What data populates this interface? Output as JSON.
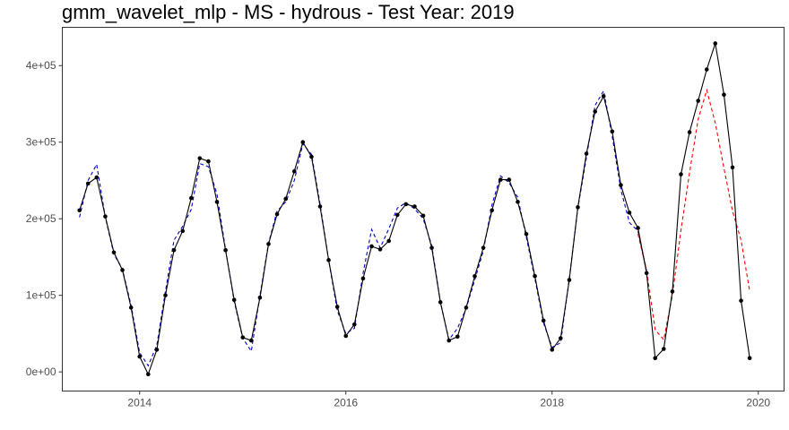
{
  "chart_data": {
    "type": "line",
    "title": "gmm_wavelet_mlp - MS - hydrous - Test Year: 2019",
    "xlabel": "",
    "ylabel": "",
    "xlim": [
      2013.25,
      2020.25
    ],
    "ylim": [
      -25000,
      450000
    ],
    "x_ticks": [
      2014,
      2016,
      2018,
      2020
    ],
    "x_tick_labels": [
      "2014",
      "2016",
      "2018",
      "2020"
    ],
    "y_ticks": [
      0,
      100000,
      200000,
      300000,
      400000
    ],
    "y_tick_labels": [
      "0e+00",
      "1e+05",
      "2e+05",
      "3e+05",
      "4e+05"
    ],
    "grid": false,
    "legend": "none",
    "x": [
      2013.417,
      2013.5,
      2013.583,
      2013.667,
      2013.75,
      2013.833,
      2013.917,
      2014.0,
      2014.083,
      2014.167,
      2014.25,
      2014.333,
      2014.417,
      2014.5,
      2014.583,
      2014.667,
      2014.75,
      2014.833,
      2014.917,
      2015.0,
      2015.083,
      2015.167,
      2015.25,
      2015.333,
      2015.417,
      2015.5,
      2015.583,
      2015.667,
      2015.75,
      2015.833,
      2015.917,
      2016.0,
      2016.083,
      2016.167,
      2016.25,
      2016.333,
      2016.417,
      2016.5,
      2016.583,
      2016.667,
      2016.75,
      2016.833,
      2016.917,
      2017.0,
      2017.083,
      2017.167,
      2017.25,
      2017.333,
      2017.417,
      2017.5,
      2017.583,
      2017.667,
      2017.75,
      2017.833,
      2017.917,
      2018.0,
      2018.083,
      2018.167,
      2018.25,
      2018.333,
      2018.417,
      2018.5,
      2018.583,
      2018.667,
      2018.75,
      2018.833,
      2018.917,
      2019.0,
      2019.083,
      2019.167,
      2019.25,
      2019.333,
      2019.417,
      2019.5,
      2019.583,
      2019.667,
      2019.75,
      2019.833,
      2019.917
    ],
    "series": [
      {
        "color": "#000000",
        "style": "solid-with-points",
        "values": [
          211000,
          246000,
          254000,
          203000,
          156000,
          133000,
          84000,
          20000,
          -3000,
          29000,
          100000,
          159000,
          184000,
          227000,
          279000,
          275000,
          222000,
          159000,
          94000,
          45000,
          41000,
          97000,
          167000,
          206000,
          226000,
          262000,
          300000,
          281000,
          216000,
          146000,
          85000,
          47000,
          62000,
          122000,
          164000,
          160000,
          171000,
          205000,
          219000,
          216000,
          204000,
          162000,
          91000,
          41000,
          46000,
          84000,
          125000,
          162000,
          211000,
          251000,
          251000,
          222000,
          180000,
          125000,
          67000,
          29000,
          44000,
          120000,
          215000,
          285000,
          340000,
          360000,
          314000,
          244000,
          208000,
          188000,
          129000,
          18000,
          30000,
          105000,
          258000,
          313000,
          354000,
          395000,
          429000,
          362000,
          267000,
          93000,
          18000
        ]
      },
      {
        "color": "#0000cd",
        "style": "dashed",
        "values": [
          202000,
          250000,
          271000,
          202000,
          154000,
          134000,
          87000,
          25000,
          8000,
          35000,
          105000,
          172000,
          190000,
          212000,
          272000,
          268000,
          232000,
          160000,
          92000,
          44000,
          27000,
          100000,
          168000,
          210000,
          222000,
          250000,
          298000,
          284000,
          219000,
          146000,
          80000,
          50000,
          57000,
          129000,
          186000,
          162000,
          187000,
          214000,
          221000,
          213000,
          200000,
          165000,
          91000,
          42000,
          57000,
          83000,
          120000,
          158000,
          218000,
          256000,
          247000,
          228000,
          176000,
          122000,
          64000,
          32000,
          38000,
          122000,
          214000,
          280000,
          348000,
          367000,
          308000,
          238000,
          195000,
          184000,
          132000,
          null,
          null,
          null,
          null,
          null,
          null,
          null,
          null,
          null,
          null,
          null,
          null
        ]
      },
      {
        "color": "#ff0000",
        "style": "dashed",
        "values": [
          null,
          null,
          null,
          null,
          null,
          null,
          null,
          null,
          null,
          null,
          null,
          null,
          null,
          null,
          null,
          null,
          null,
          null,
          null,
          null,
          null,
          null,
          null,
          null,
          null,
          null,
          null,
          null,
          null,
          null,
          null,
          null,
          null,
          null,
          null,
          null,
          null,
          null,
          null,
          null,
          null,
          null,
          null,
          null,
          null,
          null,
          null,
          null,
          null,
          null,
          null,
          null,
          null,
          null,
          null,
          null,
          null,
          null,
          null,
          null,
          null,
          null,
          null,
          null,
          null,
          180000,
          132000,
          55000,
          42000,
          100000,
          185000,
          260000,
          330000,
          368000,
          325000,
          266000,
          210000,
          172000,
          105000
        ]
      }
    ]
  }
}
